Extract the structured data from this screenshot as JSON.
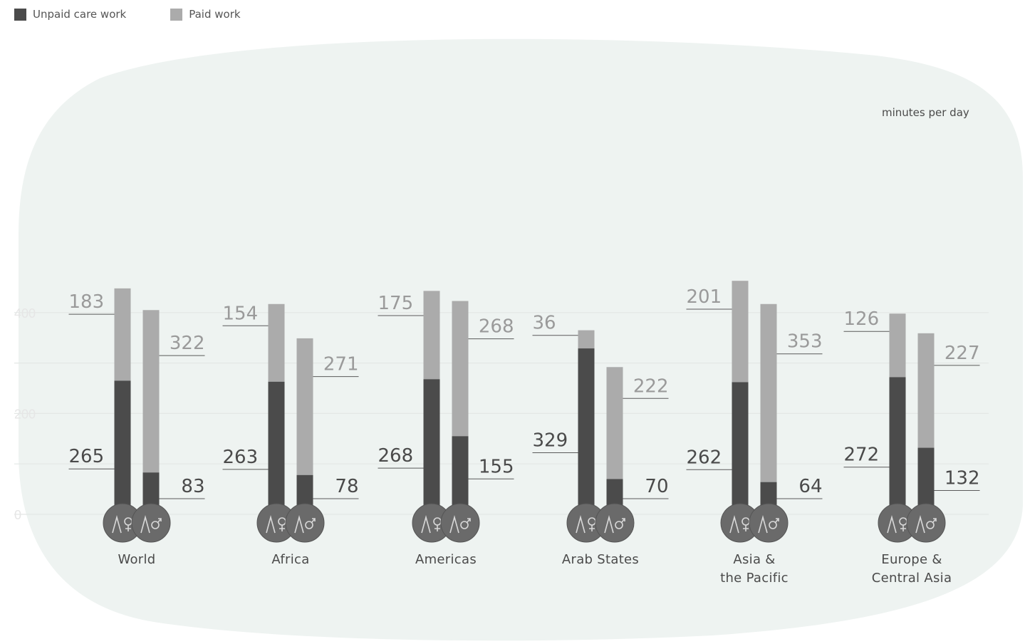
{
  "chart_data": {
    "type": "bar",
    "legend": [
      {
        "label": "Unpaid care work",
        "color": "#4b4b4b"
      },
      {
        "label": "Paid work",
        "color": "#ababab"
      }
    ],
    "unit": "minutes per day",
    "y_ticks": [
      "0",
      "200",
      "400"
    ],
    "ylim": [
      0,
      430
    ],
    "regions": [
      {
        "label": "World",
        "women": {
          "unpaid": 265,
          "paid": 183
        },
        "men": {
          "unpaid": 83,
          "paid": 322
        }
      },
      {
        "label": "Africa",
        "women": {
          "unpaid": 263,
          "paid": 154
        },
        "men": {
          "unpaid": 78,
          "paid": 271
        }
      },
      {
        "label": "Americas",
        "women": {
          "unpaid": 268,
          "paid": 175
        },
        "men": {
          "unpaid": 155,
          "paid": 268
        }
      },
      {
        "label": "Arab States",
        "women": {
          "unpaid": 329,
          "paid": 36
        },
        "men": {
          "unpaid": 70,
          "paid": 222
        }
      },
      {
        "label": "Asia &\nthe Pacific",
        "women": {
          "unpaid": 262,
          "paid": 201
        },
        "men": {
          "unpaid": 64,
          "paid": 353
        }
      },
      {
        "label": "Europe &\nCentral Asia",
        "women": {
          "unpaid": 272,
          "paid": 126
        },
        "men": {
          "unpaid": 132,
          "paid": 227
        }
      }
    ],
    "colors": {
      "unpaid": "#4b4b4b",
      "paid": "#ababab",
      "blob": "#eef3f1",
      "circle": "#6a6a6a"
    },
    "icons": [
      "female-symbol-icon",
      "male-symbol-icon"
    ]
  }
}
